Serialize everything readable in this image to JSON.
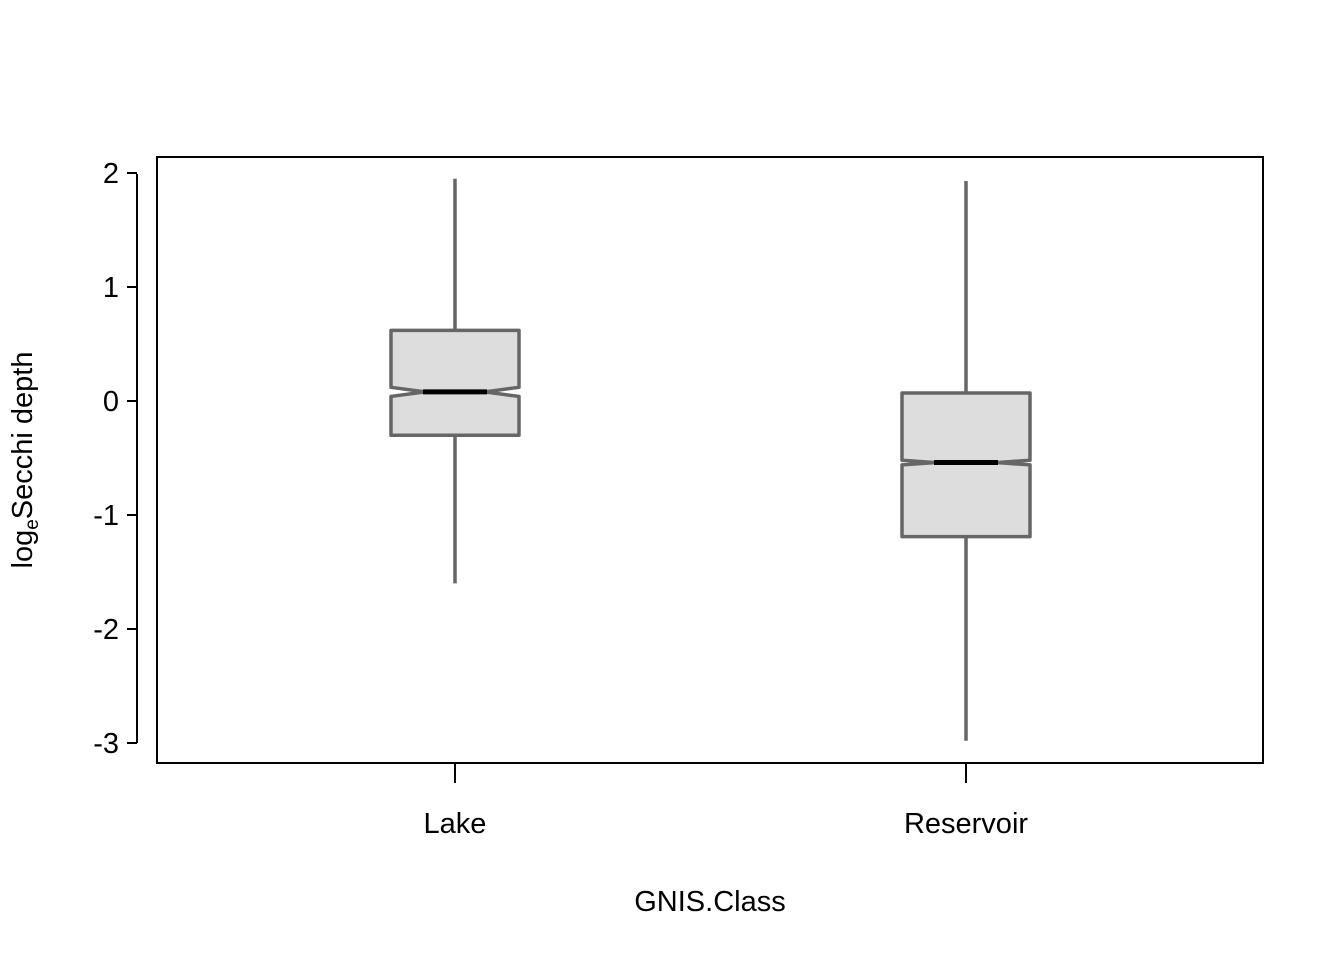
{
  "chart_data": {
    "type": "boxplot",
    "title": "",
    "xlabel": "GNIS.Class",
    "ylabel": {
      "main": "log",
      "sub": "e",
      "rest": "Secchi depth"
    },
    "categories": [
      "Lake",
      "Reservoir"
    ],
    "ylim": [
      -3.2,
      2.14
    ],
    "yticks": [
      2,
      1,
      0,
      -1,
      -2,
      -3
    ],
    "ytick_labels": [
      "2",
      "1",
      "0",
      "-1",
      "-2",
      "-3"
    ],
    "notched": true,
    "boxes": [
      {
        "label": "Lake",
        "whisker_low": -1.6,
        "q1": -0.3,
        "notch_low": 0.04,
        "median": 0.08,
        "notch_high": 0.12,
        "q3": 0.62,
        "whisker_high": 1.95
      },
      {
        "label": "Reservoir",
        "whisker_low": -2.98,
        "q1": -1.19,
        "notch_low": -0.56,
        "median": -0.54,
        "notch_high": -0.52,
        "q3": 0.07,
        "whisker_high": 1.93
      }
    ],
    "colors": {
      "box_fill": "#dddddd",
      "box_stroke": "#666666",
      "median": "#000000",
      "frame": "#000000"
    },
    "grid": false,
    "legend": "none"
  }
}
